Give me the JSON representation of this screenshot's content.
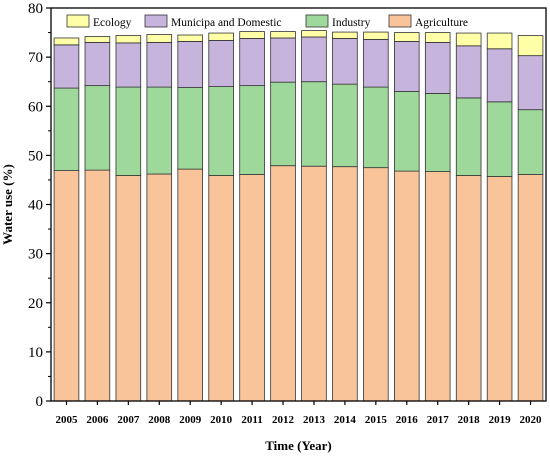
{
  "chart_data": {
    "type": "bar",
    "stacked": true,
    "xlabel": "Time (Year)",
    "ylabel": "Water use (%)",
    "ylim": [
      0,
      80
    ],
    "yticks": [
      0,
      10,
      20,
      30,
      40,
      50,
      60,
      70,
      80
    ],
    "categories": [
      "2005",
      "2006",
      "2007",
      "2008",
      "2009",
      "2010",
      "2011",
      "2012",
      "2013",
      "2014",
      "2015",
      "2016",
      "2017",
      "2018",
      "2019",
      "2020"
    ],
    "legend_position": "top",
    "series": [
      {
        "name": "Agriculture",
        "color": "#F9C49A",
        "values": [
          46.9,
          47.0,
          45.9,
          46.2,
          47.2,
          45.9,
          46.1,
          47.9,
          47.8,
          47.7,
          47.5,
          46.8,
          46.7,
          45.9,
          45.7,
          46.1
        ]
      },
      {
        "name": "Industry",
        "color": "#9ED89A",
        "values": [
          16.8,
          17.2,
          18.0,
          17.7,
          16.6,
          18.1,
          18.1,
          17.0,
          17.2,
          16.8,
          16.4,
          16.2,
          15.9,
          15.8,
          15.2,
          13.2
        ]
      },
      {
        "name": "Municipa and Domestic",
        "color": "#C6B4DC",
        "values": [
          8.8,
          8.8,
          9.0,
          9.1,
          9.4,
          9.4,
          9.6,
          9.0,
          9.1,
          9.3,
          9.7,
          10.2,
          10.4,
          10.6,
          10.8,
          11.0
        ]
      },
      {
        "name": "Ecology",
        "color": "#FFFFA8",
        "values": [
          1.4,
          1.2,
          1.5,
          1.6,
          1.3,
          1.5,
          1.4,
          1.3,
          1.3,
          1.3,
          1.5,
          1.8,
          2.0,
          2.6,
          3.2,
          4.1
        ]
      }
    ],
    "legend_order": [
      "Ecology",
      "Municipa and Domestic",
      "Industry",
      "Agriculture"
    ]
  }
}
